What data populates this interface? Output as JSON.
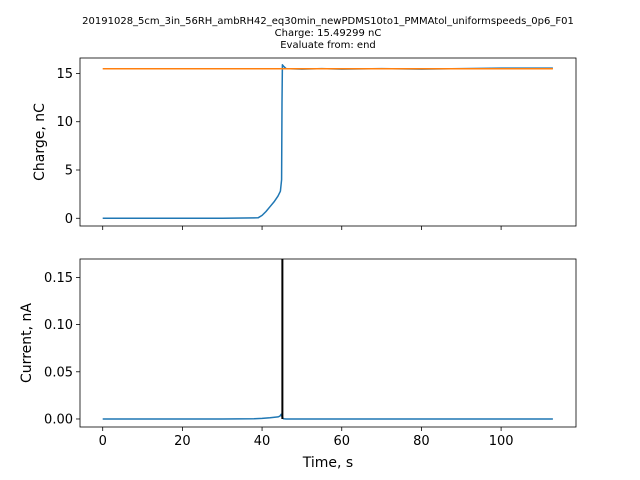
{
  "title_lines": [
    "20191028_5cm_3in_56RH_ambRH42_eq30min_newPDMS10to1_PMMAtol_uniformspeeds_0p6_F01",
    "Charge: 15.49299 nC",
    "Evaluate from: end"
  ],
  "colors": {
    "series_blue": "#1f77b4",
    "series_orange": "#ff7f0e",
    "marker_black": "#000000"
  },
  "chart_data": [
    {
      "type": "line",
      "title": "",
      "xlabel": "",
      "ylabel": "Charge, nC",
      "xlim": [
        -5.7,
        118.8
      ],
      "ylim": [
        -0.8,
        16.6
      ],
      "x_ticks": [
        0,
        20,
        40,
        60,
        80,
        100
      ],
      "y_ticks": [
        0,
        5,
        10,
        15
      ],
      "x_tick_labels_visible": false,
      "grid": false,
      "series": [
        {
          "color": "#1f77b4",
          "x": [
            0,
            10,
            20,
            30,
            39,
            40,
            41,
            42,
            43,
            44,
            44.6,
            44.9,
            45.0,
            45.1,
            45.5,
            46,
            50,
            55,
            60,
            70,
            80,
            90,
            100,
            113
          ],
          "y": [
            0,
            0,
            0,
            0,
            0.05,
            0.3,
            0.7,
            1.2,
            1.7,
            2.3,
            2.8,
            4.0,
            12.0,
            15.9,
            15.7,
            15.5,
            15.45,
            15.5,
            15.45,
            15.5,
            15.45,
            15.5,
            15.55,
            15.55
          ]
        },
        {
          "color": "#ff7f0e",
          "x": [
            0,
            113
          ],
          "y": [
            15.49,
            15.49
          ]
        }
      ]
    },
    {
      "type": "line",
      "title": "",
      "xlabel": "Time, s",
      "ylabel": "Current, nA",
      "xlim": [
        -5.7,
        118.8
      ],
      "ylim": [
        -0.0085,
        0.1695
      ],
      "x_ticks": [
        0,
        20,
        40,
        60,
        80,
        100
      ],
      "y_ticks": [
        0.0,
        0.05,
        0.1,
        0.15
      ],
      "y_tick_labels": [
        "0.00",
        "0.05",
        "0.10",
        "0.15"
      ],
      "grid": false,
      "series": [
        {
          "color": "#1f77b4",
          "x": [
            0,
            10,
            20,
            30,
            38,
            40,
            42,
            44,
            44.5,
            44.8,
            45.1,
            45.4,
            46,
            50,
            60,
            70,
            80,
            90,
            100,
            113
          ],
          "y": [
            0,
            0,
            0,
            0,
            0.0003,
            0.0006,
            0.0012,
            0.0022,
            0.003,
            0.005,
            0.0015,
            0.0002,
            0,
            0,
            0,
            0,
            0,
            0,
            0,
            0
          ]
        }
      ],
      "vertical_line": {
        "color": "#000000",
        "x": 45.1,
        "y_from": 0.0,
        "y_to": 0.1695
      }
    }
  ]
}
